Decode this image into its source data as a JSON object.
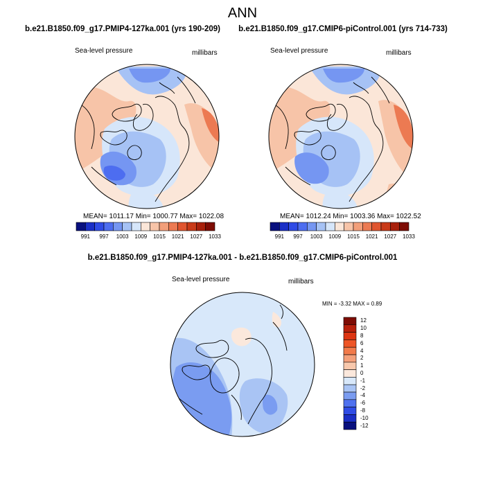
{
  "figure": {
    "title": "ANN"
  },
  "panels": {
    "left": {
      "title": "b.e21.B1850.f09_g17.PMIP4-127ka.001 (yrs 190-209)",
      "field": "Sea-level pressure",
      "units": "millibars",
      "stats": "MEAN= 1011.17   Min= 1000.77   Max= 1022.08"
    },
    "right": {
      "title": "b.e21.B1850.f09_g17.CMIP6-piControl.001 (yrs 714-733)",
      "field": "Sea-level pressure",
      "units": "millibars",
      "stats": "MEAN= 1012.24   Min= 1003.36   Max= 1022.52"
    },
    "diff": {
      "title": "b.e21.B1850.f09_g17.PMIP4-127ka.001 - b.e21.B1850.f09_g17.CMIP6-piControl.001",
      "field": "Sea-level pressure",
      "units": "millibars",
      "stats": "MIN =  -3.32 MAX =   0.89"
    }
  },
  "colorbars": {
    "abs": {
      "labels": [
        "991",
        "997",
        "1003",
        "1009",
        "1015",
        "1021",
        "1027",
        "1033"
      ],
      "colors": [
        "#08107e",
        "#1a2fc7",
        "#2f4be6",
        "#4d6df0",
        "#7596f2",
        "#a6c2f5",
        "#d6e6fa",
        "#fbe6d8",
        "#f7c4a8",
        "#f29f7a",
        "#ec7a52",
        "#e0552f",
        "#c93a18",
        "#a8200b",
        "#7e0c04"
      ]
    },
    "diff": {
      "labels": [
        "12",
        "10",
        "8",
        "6",
        "4",
        "2",
        "1",
        "0",
        "-1",
        "-2",
        "-4",
        "-6",
        "-8",
        "-10",
        "-12"
      ],
      "colors": [
        "#7e0c04",
        "#b8200b",
        "#dd3512",
        "#ee5526",
        "#f27a4a",
        "#f4a07a",
        "#f8c8ac",
        "#fbe8dc",
        "#d8e8fa",
        "#a9c4f4",
        "#7a9cf1",
        "#4f71ef",
        "#2f4ce6",
        "#1a2ec6",
        "#08107e"
      ]
    }
  }
}
